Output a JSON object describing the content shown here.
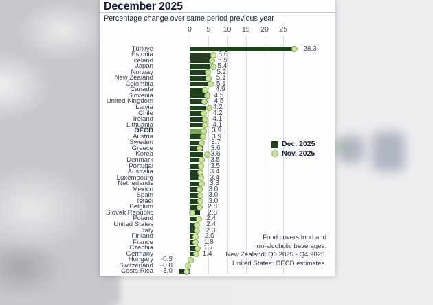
{
  "card": {
    "title": "December 2025",
    "subtitle": "Percentage change over same period previous year",
    "legend": [
      {
        "label": "Dec. 2025",
        "marker": "square",
        "color": "#21401d"
      },
      {
        "label": "Nov. 2025",
        "marker": "circle",
        "color": "#c9e49a"
      }
    ],
    "footnote_lines": [
      "Food covers food and",
      "non-alcoholic beverages.",
      "New Zealand: Q3 2025 - Q4 2025.",
      "United States: OECD estimates."
    ]
  },
  "chart_data": {
    "type": "bar",
    "orientation": "horizontal",
    "title": "December 2025",
    "subtitle": "Percentage change over same period previous year",
    "axis_ticks": [
      0,
      5,
      10,
      15,
      20,
      25
    ],
    "xlim": [
      -4,
      28.5
    ],
    "grid": true,
    "legend_position": "right-middle",
    "highlight_category": "OECD",
    "colors": {
      "dec_bar": "#21401d",
      "oecd_bar": "#7ea55e",
      "nov_marker_fill": "#c9e49a",
      "nov_marker_border": "#85aa58"
    },
    "categories": [
      "Türkiye",
      "Estonia",
      "Iceland",
      "Japan",
      "Norway",
      "New Zealand",
      "Colombia",
      "Canada",
      "Slovenia",
      "United Kingdom",
      "Latvia",
      "Chile",
      "Ireland",
      "Lithuania",
      "OECD",
      "Austria",
      "Sweden",
      "Greece",
      "Korea",
      "Denmark",
      "Portugal",
      "Australia",
      "Luxembourg",
      "Netherlands",
      "Mexico",
      "Spain",
      "Israel",
      "Belgium",
      "Slovak Republic",
      "Poland",
      "United States",
      "Italy",
      "Finland",
      "France",
      "Czechia",
      "Germany",
      "Hungary",
      "Switzerland",
      "Costa Rica"
    ],
    "series": [
      {
        "name": "Dec. 2025",
        "values": [
          28.3,
          5.6,
          5.5,
          5.4,
          5.2,
          5.1,
          5.1,
          4.9,
          4.5,
          4.5,
          4.2,
          4.2,
          4.1,
          4.1,
          3.9,
          3.9,
          3.7,
          3.6,
          3.6,
          3.5,
          3.5,
          3.4,
          3.4,
          3.3,
          3.0,
          3.0,
          3.0,
          2.8,
          2.8,
          2.4,
          2.4,
          2.3,
          2.0,
          1.8,
          1.7,
          1.4,
          -0.3,
          -0.8,
          -3.0
        ]
      },
      {
        "name": "Nov. 2025",
        "values": [
          28.0,
          6.3,
          5.9,
          6.3,
          4.8,
          5.0,
          5.6,
          4.2,
          4.7,
          3.9,
          5.2,
          3.8,
          4.1,
          4.2,
          3.8,
          3.5,
          3.3,
          2.7,
          4.7,
          3.3,
          3.1,
          2.8,
          3.0,
          3.2,
          2.7,
          2.9,
          2.8,
          2.7,
          0.6,
          2.4,
          1.9,
          2.0,
          1.5,
          1.5,
          2.2,
          1.7,
          0.3,
          -0.5,
          -0.9
        ]
      }
    ]
  }
}
